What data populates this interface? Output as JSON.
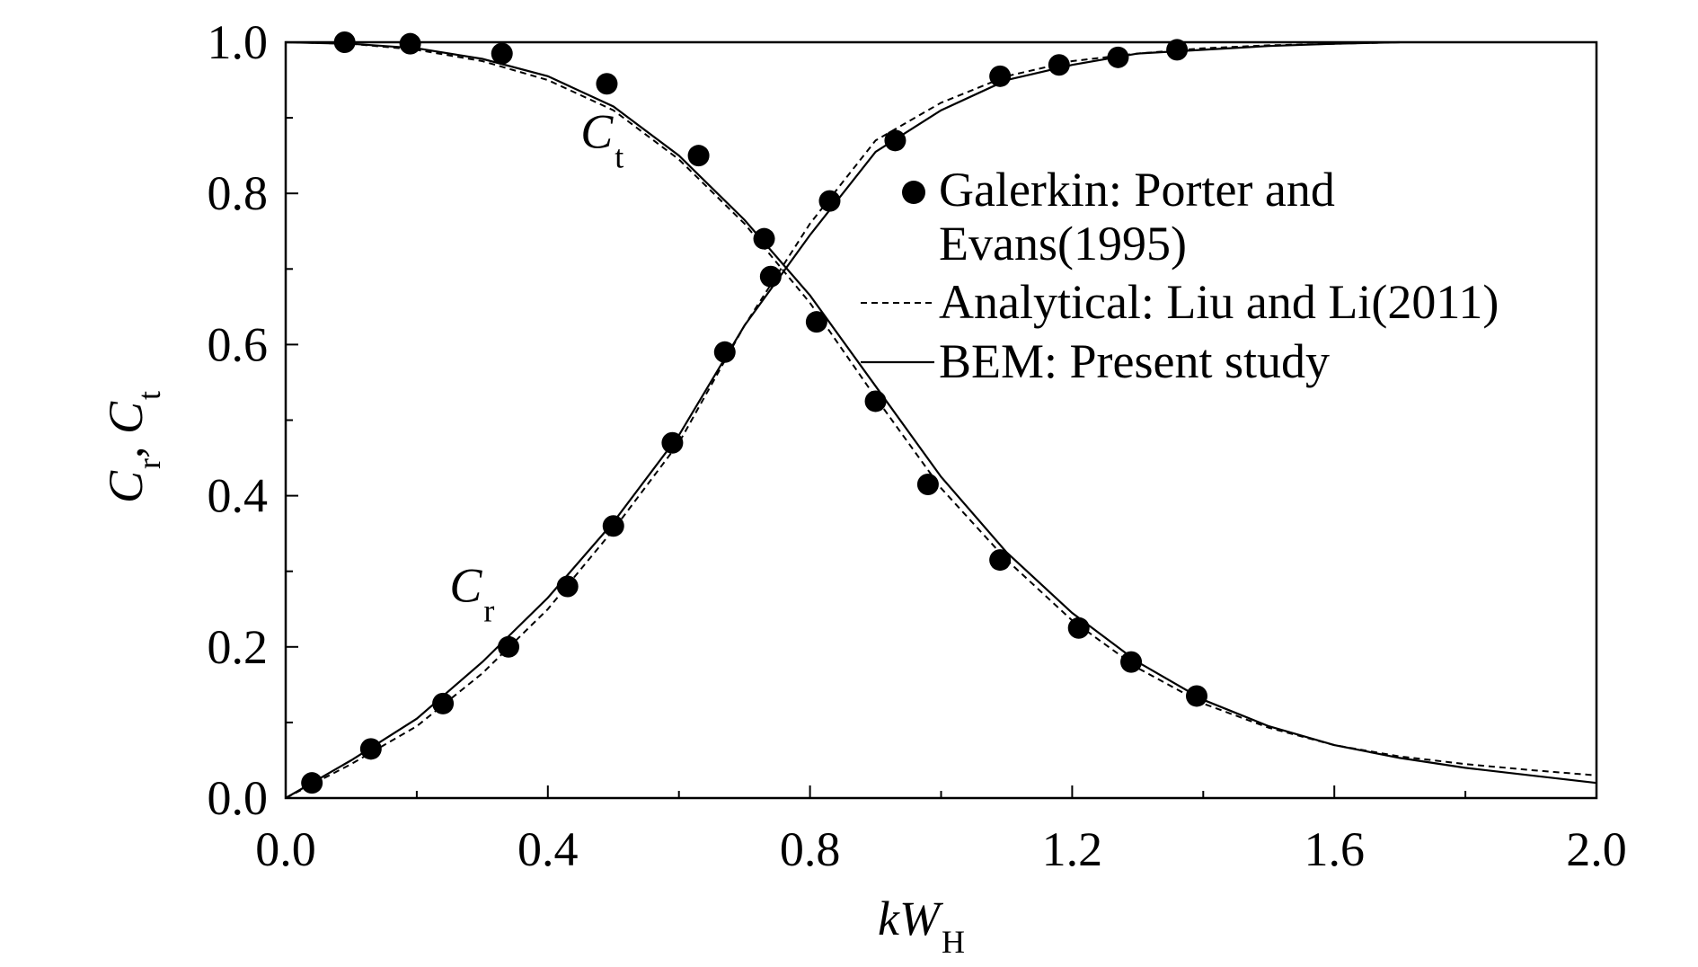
{
  "chart_data": {
    "type": "line",
    "xlabel": {
      "main": "kW",
      "sub": "H"
    },
    "ylabel": {
      "c1": "C",
      "s1": "r",
      "sep": ",",
      "c2": "C",
      "s2": "t"
    },
    "xlim": [
      0,
      2.0
    ],
    "ylim": [
      0,
      1.0
    ],
    "xticks": [
      "0.0",
      "0.4",
      "0.8",
      "1.2",
      "1.6",
      "2.0"
    ],
    "yticks": [
      "0.0",
      "0.2",
      "0.4",
      "0.6",
      "0.8",
      "1.0"
    ],
    "xtick_values": [
      0,
      0.4,
      0.8,
      1.2,
      1.6,
      2.0
    ],
    "ytick_values": [
      0,
      0.2,
      0.4,
      0.6,
      0.8,
      1.0
    ],
    "x_minor_step": 0.2,
    "y_minor_step": 0.1,
    "grid": false,
    "legend_position": "right",
    "curve_labels": [
      {
        "main": "C",
        "sub": "t",
        "x": 0.45,
        "y": 0.86
      },
      {
        "main": "C",
        "sub": "r",
        "x": 0.25,
        "y": 0.26
      }
    ],
    "series": [
      {
        "name": "Galerkin: Porter and Evans(1995)",
        "legend_lines": [
          "Galerkin: Porter and",
          "Evans(1995)"
        ],
        "style": "markers",
        "color": "#000000",
        "groups": [
          {
            "curve": "Ct",
            "x": [
              0.09,
              0.19,
              0.33,
              0.49,
              0.63,
              0.73,
              0.81,
              0.9,
              0.98,
              1.09,
              1.21,
              1.29,
              1.39
            ],
            "y": [
              1.0,
              0.998,
              0.985,
              0.945,
              0.85,
              0.74,
              0.63,
              0.525,
              0.415,
              0.315,
              0.225,
              0.18,
              0.135
            ]
          },
          {
            "curve": "Cr",
            "x": [
              0.04,
              0.13,
              0.24,
              0.34,
              0.43,
              0.5,
              0.59,
              0.67,
              0.74,
              0.83,
              0.93,
              1.09,
              1.18,
              1.27,
              1.36
            ],
            "y": [
              0.02,
              0.065,
              0.125,
              0.2,
              0.28,
              0.36,
              0.47,
              0.59,
              0.69,
              0.79,
              0.87,
              0.955,
              0.97,
              0.98,
              0.99
            ]
          }
        ]
      },
      {
        "name": "Analytical: Liu and Li(2011)",
        "style": "dashed",
        "color": "#000000",
        "groups": [
          {
            "curve": "Ct",
            "x": [
              0.0,
              0.1,
              0.2,
              0.3,
              0.4,
              0.5,
              0.6,
              0.7,
              0.8,
              0.9,
              1.0,
              1.1,
              1.2,
              1.3,
              1.4,
              1.5,
              1.6,
              1.7,
              1.8,
              1.9,
              2.0
            ],
            "y": [
              1.0,
              0.998,
              0.99,
              0.975,
              0.95,
              0.91,
              0.845,
              0.76,
              0.655,
              0.53,
              0.41,
              0.315,
              0.235,
              0.172,
              0.125,
              0.093,
              0.07,
              0.055,
              0.045,
              0.037,
              0.03
            ]
          },
          {
            "curve": "Cr",
            "x": [
              0.0,
              0.1,
              0.2,
              0.3,
              0.4,
              0.5,
              0.6,
              0.7,
              0.8,
              0.9,
              1.0,
              1.1,
              1.2,
              1.3,
              1.4,
              1.5,
              1.6,
              1.7
            ],
            "y": [
              0.0,
              0.045,
              0.095,
              0.165,
              0.25,
              0.355,
              0.47,
              0.625,
              0.76,
              0.87,
              0.92,
              0.955,
              0.975,
              0.985,
              0.992,
              0.996,
              0.998,
              1.0
            ]
          }
        ]
      },
      {
        "name": "BEM: Present study",
        "style": "solid",
        "color": "#000000",
        "groups": [
          {
            "curve": "Ct",
            "x": [
              0.0,
              0.1,
              0.2,
              0.3,
              0.4,
              0.5,
              0.6,
              0.7,
              0.8,
              0.9,
              1.0,
              1.1,
              1.2,
              1.3,
              1.4,
              1.5,
              1.6,
              1.7,
              1.8,
              1.9,
              2.0
            ],
            "y": [
              1.0,
              0.998,
              0.992,
              0.978,
              0.955,
              0.915,
              0.85,
              0.765,
              0.665,
              0.545,
              0.425,
              0.325,
              0.245,
              0.18,
              0.13,
              0.095,
              0.07,
              0.053,
              0.04,
              0.03,
              0.02
            ]
          },
          {
            "curve": "Cr",
            "x": [
              0.0,
              0.1,
              0.2,
              0.3,
              0.4,
              0.5,
              0.6,
              0.7,
              0.8,
              0.9,
              1.0,
              1.1,
              1.2,
              1.3,
              1.4,
              1.5,
              1.6,
              1.7
            ],
            "y": [
              0.0,
              0.05,
              0.105,
              0.18,
              0.265,
              0.365,
              0.48,
              0.625,
              0.745,
              0.855,
              0.91,
              0.95,
              0.97,
              0.985,
              0.99,
              0.995,
              0.998,
              1.0
            ]
          }
        ]
      }
    ]
  }
}
